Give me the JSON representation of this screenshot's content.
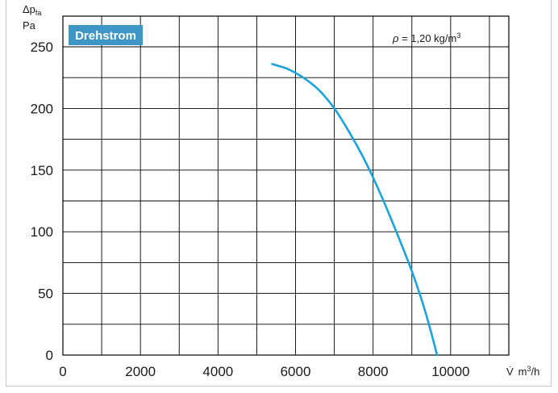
{
  "chart_data": {
    "type": "line",
    "title": "",
    "badge": {
      "label": "Drehstrom",
      "color": "#3d96c6"
    },
    "annotation": {
      "symbol": "ρ",
      "text": " = 1,20 kg/m",
      "superscript": "3"
    },
    "ylabel": {
      "symbol": "Δp",
      "subscript": "fa",
      "unit": "Pa"
    },
    "xlabel": {
      "symbol": "V̇",
      "unit": "m",
      "unit_sup": "3",
      "unit_tail": "/h"
    },
    "xlim": [
      0,
      11500
    ],
    "ylim": [
      0,
      250
    ],
    "x_ticks": [
      0,
      2000,
      4000,
      6000,
      8000,
      10000
    ],
    "x_ticks_labels": [
      "0",
      "2000",
      "4000",
      "6000",
      "8000",
      "10000"
    ],
    "y_ticks": [
      0,
      50,
      100,
      150,
      200,
      250
    ],
    "y_ticks_labels": [
      "0",
      "50",
      "100",
      "150",
      "200",
      "250"
    ],
    "grid": true,
    "series": [
      {
        "color": "#1aa3dd",
        "x": [
          5400,
          5800,
          6200,
          6600,
          7000,
          7400,
          7800,
          8200,
          8600,
          9000,
          9300,
          9500,
          9650
        ],
        "y": [
          236,
          232,
          225,
          215,
          200,
          180,
          157,
          130,
          100,
          68,
          40,
          18,
          0
        ]
      }
    ]
  }
}
